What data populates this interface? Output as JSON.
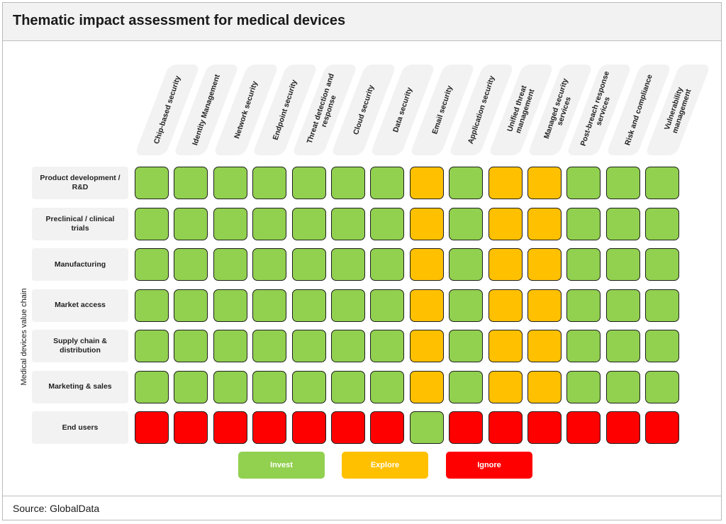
{
  "header": {
    "title": "Thematic impact assessment for medical devices"
  },
  "footer": {
    "source": "Source: GlobalData"
  },
  "chart_data": {
    "type": "heatmap",
    "y_axis_title": "Medical devices value chain",
    "columns": [
      "Chip-based security",
      "Identity Management",
      "Network security",
      "Endpoint security",
      "Threat detection and response",
      "Cloud security",
      "Data security",
      "Email security",
      "Application security",
      "Unified threat management",
      "Managed security services",
      "Post-breach response services",
      "Risk and compliance",
      "Vulnerability management"
    ],
    "rows": [
      {
        "label": "Product development / R&D",
        "values": [
          "Invest",
          "Invest",
          "Invest",
          "Invest",
          "Invest",
          "Invest",
          "Invest",
          "Explore",
          "Invest",
          "Explore",
          "Explore",
          "Invest",
          "Invest",
          "Invest"
        ]
      },
      {
        "label": "Preclinical /  clinical trials",
        "values": [
          "Invest",
          "Invest",
          "Invest",
          "Invest",
          "Invest",
          "Invest",
          "Invest",
          "Explore",
          "Invest",
          "Explore",
          "Explore",
          "Invest",
          "Invest",
          "Invest"
        ]
      },
      {
        "label": "Manufacturing",
        "values": [
          "Invest",
          "Invest",
          "Invest",
          "Invest",
          "Invest",
          "Invest",
          "Invest",
          "Explore",
          "Invest",
          "Explore",
          "Explore",
          "Invest",
          "Invest",
          "Invest"
        ]
      },
      {
        "label": "Market access",
        "values": [
          "Invest",
          "Invest",
          "Invest",
          "Invest",
          "Invest",
          "Invest",
          "Invest",
          "Explore",
          "Invest",
          "Explore",
          "Explore",
          "Invest",
          "Invest",
          "Invest"
        ]
      },
      {
        "label": "Supply chain & distribution",
        "values": [
          "Invest",
          "Invest",
          "Invest",
          "Invest",
          "Invest",
          "Invest",
          "Invest",
          "Explore",
          "Invest",
          "Explore",
          "Explore",
          "Invest",
          "Invest",
          "Invest"
        ]
      },
      {
        "label": "Marketing & sales",
        "values": [
          "Invest",
          "Invest",
          "Invest",
          "Invest",
          "Invest",
          "Invest",
          "Invest",
          "Explore",
          "Invest",
          "Explore",
          "Explore",
          "Invest",
          "Invest",
          "Invest"
        ]
      },
      {
        "label": "End users",
        "values": [
          "Ignore",
          "Ignore",
          "Ignore",
          "Ignore",
          "Ignore",
          "Ignore",
          "Ignore",
          "Invest",
          "Ignore",
          "Ignore",
          "Ignore",
          "Ignore",
          "Ignore",
          "Ignore"
        ]
      }
    ],
    "legend": [
      {
        "label": "Invest",
        "color": "#92d050"
      },
      {
        "label": "Explore",
        "color": "#ffc000"
      },
      {
        "label": "Ignore",
        "color": "#ff0000"
      }
    ]
  }
}
